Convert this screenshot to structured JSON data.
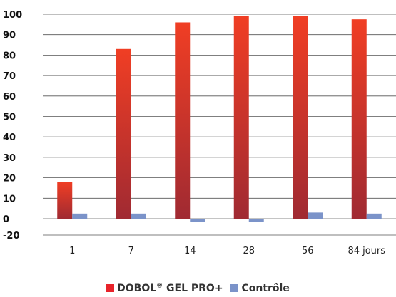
{
  "chart_data": {
    "type": "bar",
    "categories": [
      "1",
      "7",
      "14",
      "28",
      "56",
      "84 jours"
    ],
    "series": [
      {
        "name": "DOBOL® GEL PRO+",
        "values": [
          18,
          83,
          96,
          99,
          99,
          97.5
        ],
        "color_top": "#f03e24",
        "color_bottom": "#a02a32"
      },
      {
        "name": "Contrôle",
        "values": [
          2.5,
          2.5,
          -4,
          -4,
          3,
          2.5
        ],
        "color": "#7b93c9"
      }
    ],
    "ylim": [
      -20,
      100
    ],
    "yticks": [
      100,
      90,
      80,
      70,
      60,
      50,
      40,
      30,
      20,
      10,
      0,
      -20
    ],
    "gridlines": true,
    "legend": "bottom-center"
  },
  "legend": {
    "series1_main": "DOBOL",
    "series1_sup": "®",
    "series1_rest": " GEL PRO+",
    "series2": "Contrôle"
  }
}
